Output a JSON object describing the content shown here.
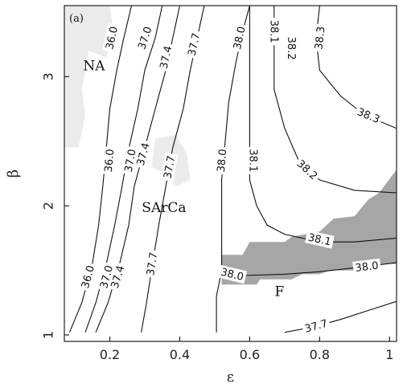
{
  "chart_data": {
    "type": "contour",
    "panel_label": "(a)",
    "xlabel": "ε",
    "ylabel": "β",
    "xlim": [
      0.07,
      1.02
    ],
    "ylim": [
      0.95,
      3.55
    ],
    "xticks": [
      0.2,
      0.4,
      0.6,
      0.8,
      1
    ],
    "xtick_labels": [
      "0.2",
      "0.4",
      "0.6",
      "0.8",
      "1"
    ],
    "yticks": [
      1,
      2,
      3
    ],
    "ytick_labels": [
      "1",
      "2",
      "3"
    ],
    "grid": false,
    "colors": {
      "shaded_region": "#a6a6a6",
      "light_region": "#ebebeb",
      "contour": "#111111"
    },
    "regions": [
      {
        "label": "NA",
        "x": 0.155,
        "y": 3.05
      },
      {
        "label": "SArCa",
        "x": 0.355,
        "y": 1.95
      },
      {
        "label": "F",
        "x": 0.685,
        "y": 1.3
      }
    ],
    "shaded_region": [
      [
        0.52,
        1.39
      ],
      [
        0.52,
        1.62
      ],
      [
        0.58,
        1.62
      ],
      [
        0.6,
        1.72
      ],
      [
        0.7,
        1.72
      ],
      [
        0.72,
        1.76
      ],
      [
        0.8,
        1.8
      ],
      [
        0.84,
        1.9
      ],
      [
        0.9,
        1.92
      ],
      [
        0.94,
        2.05
      ],
      [
        0.97,
        2.1
      ],
      [
        1.02,
        2.28
      ],
      [
        1.02,
        1.55
      ],
      [
        0.95,
        1.55
      ],
      [
        0.9,
        1.5
      ],
      [
        0.83,
        1.5
      ],
      [
        0.8,
        1.47
      ],
      [
        0.75,
        1.47
      ],
      [
        0.72,
        1.43
      ],
      [
        0.63,
        1.43
      ],
      [
        0.62,
        1.39
      ]
    ],
    "light_regions": [
      [
        [
          0.07,
          3.55
        ],
        [
          0.2,
          3.55
        ],
        [
          0.21,
          3.35
        ],
        [
          0.19,
          3.15
        ],
        [
          0.14,
          3.2
        ],
        [
          0.12,
          2.9
        ],
        [
          0.13,
          2.7
        ],
        [
          0.11,
          2.45
        ],
        [
          0.07,
          2.45
        ]
      ],
      [
        [
          0.33,
          2.52
        ],
        [
          0.39,
          2.55
        ],
        [
          0.42,
          2.4
        ],
        [
          0.43,
          2.2
        ],
        [
          0.39,
          2.15
        ],
        [
          0.36,
          2.25
        ],
        [
          0.32,
          2.3
        ]
      ]
    ],
    "contours": [
      {
        "level": "36.0",
        "points": [
          [
            0.085,
            1.02
          ],
          [
            0.12,
            1.25
          ],
          [
            0.15,
            1.55
          ],
          [
            0.168,
            1.85
          ],
          [
            0.18,
            2.15
          ],
          [
            0.19,
            2.45
          ],
          [
            0.2,
            2.75
          ],
          [
            0.22,
            3.05
          ],
          [
            0.24,
            3.3
          ],
          [
            0.262,
            3.55
          ]
        ],
        "labels": [
          {
            "x": 0.205,
            "y": 3.3
          },
          {
            "x": 0.198,
            "y": 2.35
          },
          {
            "x": 0.137,
            "y": 1.45
          }
        ]
      },
      {
        "level": "37.0",
        "points": [
          [
            0.13,
            1.02
          ],
          [
            0.16,
            1.25
          ],
          [
            0.19,
            1.55
          ],
          [
            0.214,
            1.85
          ],
          [
            0.235,
            2.15
          ],
          [
            0.255,
            2.45
          ],
          [
            0.28,
            2.75
          ],
          [
            0.3,
            3.05
          ],
          [
            0.33,
            3.3
          ],
          [
            0.35,
            3.55
          ]
        ],
        "labels": [
          {
            "x": 0.3,
            "y": 3.3
          },
          {
            "x": 0.258,
            "y": 2.35
          },
          {
            "x": 0.19,
            "y": 1.45
          }
        ]
      },
      {
        "level": "37.4",
        "points": [
          [
            0.16,
            1.02
          ],
          [
            0.195,
            1.25
          ],
          [
            0.228,
            1.55
          ],
          [
            0.254,
            1.85
          ],
          [
            0.27,
            2.15
          ],
          [
            0.3,
            2.45
          ],
          [
            0.33,
            2.75
          ],
          [
            0.36,
            3.05
          ],
          [
            0.38,
            3.3
          ],
          [
            0.4,
            3.55
          ]
        ],
        "labels": [
          {
            "x": 0.36,
            "y": 3.15
          },
          {
            "x": 0.295,
            "y": 2.4
          },
          {
            "x": 0.222,
            "y": 1.45
          }
        ]
      },
      {
        "level": "37.7",
        "points": [
          [
            0.29,
            1.02
          ],
          [
            0.305,
            1.25
          ],
          [
            0.322,
            1.55
          ],
          [
            0.34,
            1.85
          ],
          [
            0.36,
            2.15
          ],
          [
            0.38,
            2.45
          ],
          [
            0.41,
            2.75
          ],
          [
            0.43,
            3.05
          ],
          [
            0.45,
            3.3
          ],
          [
            0.47,
            3.55
          ]
        ],
        "labels": [
          {
            "x": 0.44,
            "y": 3.25
          },
          {
            "x": 0.37,
            "y": 2.3
          },
          {
            "x": 0.32,
            "y": 1.55
          }
        ]
      },
      {
        "level": "38.0",
        "points": [
          [
            0.505,
            1.02
          ],
          [
            0.505,
            1.3
          ],
          [
            0.52,
            1.5
          ],
          [
            0.52,
            1.85
          ],
          [
            0.52,
            2.2
          ],
          [
            0.53,
            2.5
          ],
          [
            0.54,
            2.8
          ],
          [
            0.56,
            3.1
          ],
          [
            0.58,
            3.35
          ],
          [
            0.6,
            3.55
          ]
        ],
        "labels": [
          {
            "x": 0.57,
            "y": 3.3
          },
          {
            "x": 0.52,
            "y": 2.35
          }
        ]
      },
      {
        "level": "38.0",
        "points": [
          [
            0.52,
            1.5
          ],
          [
            0.58,
            1.46
          ],
          [
            0.7,
            1.47
          ],
          [
            0.8,
            1.49
          ],
          [
            0.9,
            1.52
          ],
          [
            1.02,
            1.56
          ]
        ],
        "labels": [
          {
            "x": 0.55,
            "y": 1.47
          },
          {
            "x": 0.935,
            "y": 1.53
          }
        ]
      },
      {
        "level": "38.1",
        "points": [
          [
            0.6,
            3.55
          ],
          [
            0.6,
            3.1
          ],
          [
            0.6,
            2.8
          ],
          [
            0.6,
            2.5
          ],
          [
            0.6,
            2.2
          ],
          [
            0.62,
            2.0
          ],
          [
            0.65,
            1.85
          ],
          [
            0.7,
            1.78
          ],
          [
            0.8,
            1.72
          ],
          [
            0.9,
            1.72
          ],
          [
            1.02,
            1.75
          ]
        ],
        "labels": [
          {
            "x": 0.67,
            "y": 3.35
          },
          {
            "x": 0.61,
            "y": 2.35
          },
          {
            "x": 0.8,
            "y": 1.74
          }
        ]
      },
      {
        "level": "38.2",
        "points": [
          [
            0.67,
            3.55
          ],
          [
            0.67,
            3.2
          ],
          [
            0.67,
            2.9
          ],
          [
            0.7,
            2.6
          ],
          [
            0.74,
            2.35
          ],
          [
            0.8,
            2.2
          ],
          [
            0.9,
            2.12
          ],
          [
            1.02,
            2.1
          ]
        ],
        "labels": [
          {
            "x": 0.72,
            "y": 3.22
          },
          {
            "x": 0.765,
            "y": 2.28
          }
        ]
      },
      {
        "level": "38.3",
        "points": [
          [
            0.8,
            3.55
          ],
          [
            0.79,
            3.3
          ],
          [
            0.8,
            3.05
          ],
          [
            0.86,
            2.85
          ],
          [
            0.93,
            2.7
          ],
          [
            1.02,
            2.6
          ]
        ],
        "labels": [
          {
            "x": 0.8,
            "y": 3.3
          },
          {
            "x": 0.94,
            "y": 2.7
          }
        ]
      },
      {
        "level": "37.7",
        "points": [
          [
            0.7,
            1.02
          ],
          [
            0.78,
            1.06
          ],
          [
            0.86,
            1.12
          ],
          [
            0.94,
            1.19
          ],
          [
            1.02,
            1.26
          ]
        ],
        "labels": [
          {
            "x": 0.79,
            "y": 1.07
          }
        ]
      }
    ]
  }
}
